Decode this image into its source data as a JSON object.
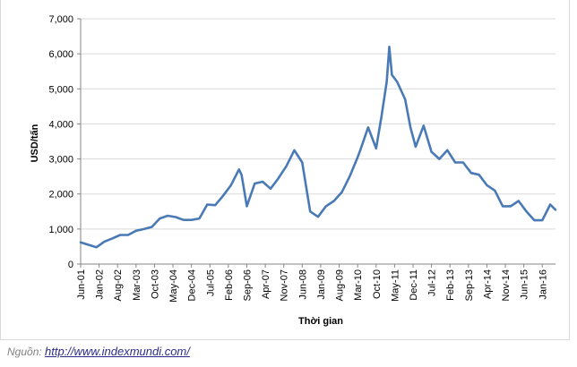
{
  "chart_data": {
    "type": "line",
    "title": "",
    "xlabel": "Thời gian",
    "ylabel": "USD/tấn",
    "ylim": [
      0,
      7000
    ],
    "yticks": [
      0,
      1000,
      2000,
      3000,
      4000,
      5000,
      6000,
      7000
    ],
    "ytick_labels": [
      "0",
      "1,000",
      "2,000",
      "3,000",
      "4,000",
      "5,000",
      "6,000",
      "7,000"
    ],
    "xlim": [
      "2001-06",
      "2016-06"
    ],
    "xtick_labels": [
      "Jun-01",
      "Jan-02",
      "Aug-02",
      "Mar-03",
      "Oct-03",
      "May-04",
      "Dec-04",
      "Jul-05",
      "Feb-06",
      "Sep-06",
      "Apr-07",
      "Nov-07",
      "Jun-08",
      "Jan-09",
      "Aug-09",
      "Mar-10",
      "Oct-10",
      "May-11",
      "Dec-11",
      "Jul-12",
      "Feb-13",
      "Sep-13",
      "Apr-14",
      "Nov-14",
      "Jun-15",
      "Jan-16"
    ],
    "grid": "horizontal",
    "line_color": "#4a7ab5",
    "series": [
      {
        "x": [
          "2001-06",
          "2001-09",
          "2001-12",
          "2002-03",
          "2002-06",
          "2002-09",
          "2002-12",
          "2003-03",
          "2003-06",
          "2003-09",
          "2003-12",
          "2004-03",
          "2004-06",
          "2004-09",
          "2004-12",
          "2005-03",
          "2005-06",
          "2005-09",
          "2005-12",
          "2006-03",
          "2006-06",
          "2006-07",
          "2006-09",
          "2006-12",
          "2007-03",
          "2007-06",
          "2007-09",
          "2007-12",
          "2008-03",
          "2008-06",
          "2008-09",
          "2008-12",
          "2009-03",
          "2009-06",
          "2009-09",
          "2009-12",
          "2010-03",
          "2010-04",
          "2010-07",
          "2010-10",
          "2010-12",
          "2011-02",
          "2011-03",
          "2011-04",
          "2011-06",
          "2011-09",
          "2011-11",
          "2012-01",
          "2012-04",
          "2012-07",
          "2012-10",
          "2013-01",
          "2013-04",
          "2013-07",
          "2013-10",
          "2014-01",
          "2014-04",
          "2014-07",
          "2014-10",
          "2015-01",
          "2015-04",
          "2015-07",
          "2015-10",
          "2016-01",
          "2016-04",
          "2016-06"
        ],
        "values": [
          620,
          550,
          480,
          640,
          730,
          830,
          830,
          950,
          1000,
          1060,
          1300,
          1380,
          1340,
          1260,
          1260,
          1300,
          1700,
          1680,
          1950,
          2250,
          2700,
          2550,
          1650,
          2300,
          2350,
          2150,
          2450,
          2800,
          3250,
          2900,
          1500,
          1350,
          1650,
          1800,
          2050,
          2500,
          3050,
          3250,
          3900,
          3300,
          4200,
          5200,
          6200,
          5400,
          5200,
          4700,
          3900,
          3350,
          3950,
          3200,
          3000,
          3250,
          2900,
          2900,
          2600,
          2550,
          2250,
          2100,
          1650,
          1650,
          1800,
          1500,
          1250,
          1250,
          1700,
          1550
        ]
      }
    ]
  },
  "source": {
    "label": "Nguồn: ",
    "url_text": "http://www.indexmundi.com/"
  }
}
